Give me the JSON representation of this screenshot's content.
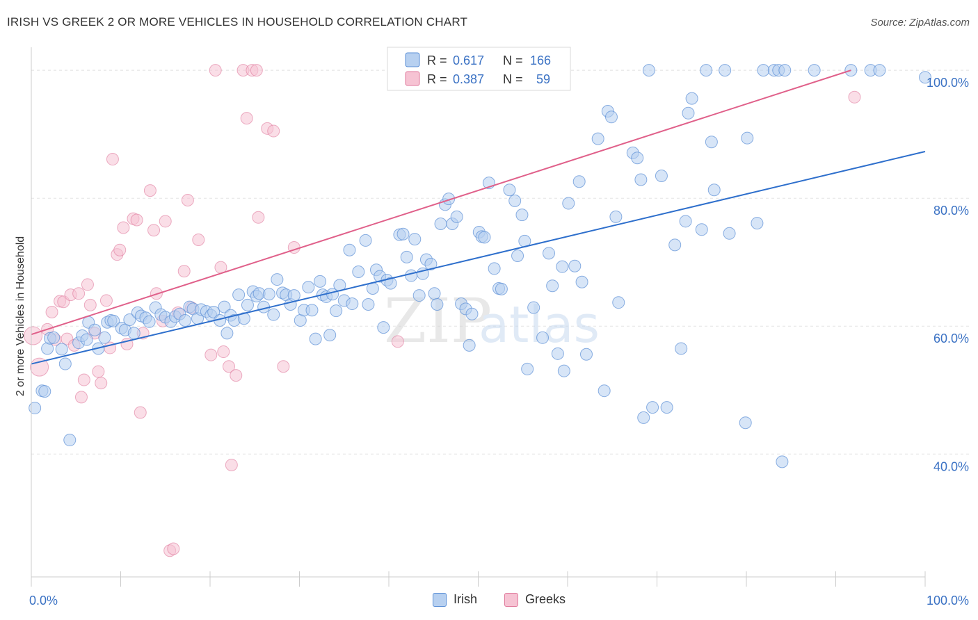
{
  "header": {
    "title": "IRISH VS GREEK 2 OR MORE VEHICLES IN HOUSEHOLD CORRELATION CHART",
    "source": "Source: ZipAtlas.com"
  },
  "colors": {
    "irish": "#5b8fd6",
    "irish_fill": "#b7d0f0",
    "irish_line": "#2e6fcc",
    "greeks": "#e07a9c",
    "greeks_fill": "#f6c3d3",
    "greeks_line": "#e0608a",
    "tick_text": "#3b72c4"
  },
  "legend": {
    "irish": {
      "r_label": "R =",
      "r_value": "0.617",
      "n_label": "N =",
      "n_value": "166"
    },
    "greeks": {
      "r_label": "R =",
      "r_value": "0.387",
      "n_label": "N =",
      "n_value": "59"
    }
  },
  "watermark": {
    "zip": "ZIP",
    "atlas": "atlas"
  },
  "chart_data": {
    "type": "scatter",
    "title": "IRISH VS GREEK 2 OR MORE VEHICLES IN HOUSEHOLD CORRELATION CHART",
    "xlabel": "",
    "ylabel": "2 or more Vehicles in Household",
    "xlim": [
      0,
      100
    ],
    "ylim": [
      20.8,
      103.6
    ],
    "x_tick_labels": [
      "0.0%",
      "100.0%"
    ],
    "y_tick_labels": [
      "40.0%",
      "60.0%",
      "80.0%",
      "100.0%"
    ],
    "y_ticks": [
      40,
      60,
      80,
      100
    ],
    "grid": true,
    "legend_position": "top-center",
    "series": [
      {
        "name": "Irish",
        "r": 0.617,
        "n": 166,
        "trend": {
          "x": [
            0,
            100
          ],
          "y": [
            54.1,
            87.3
          ]
        },
        "points": [
          [
            0.4,
            47.2
          ],
          [
            1.2,
            49.9
          ],
          [
            1.5,
            49.8
          ],
          [
            1.8,
            56.5
          ],
          [
            2.1,
            58.1
          ],
          [
            2.5,
            58.2
          ],
          [
            3.4,
            56.4
          ],
          [
            3.8,
            54.1
          ],
          [
            4.3,
            42.2
          ],
          [
            5.3,
            57.4
          ],
          [
            5.7,
            58.5
          ],
          [
            6.2,
            57.9
          ],
          [
            6.4,
            60.6
          ],
          [
            7.1,
            59.4
          ],
          [
            7.5,
            56.5
          ],
          [
            8.2,
            58.2
          ],
          [
            8.5,
            60.6
          ],
          [
            8.9,
            60.9
          ],
          [
            9.2,
            60.8
          ],
          [
            10.1,
            59.7
          ],
          [
            10.5,
            59.4
          ],
          [
            11.0,
            61.0
          ],
          [
            11.5,
            58.9
          ],
          [
            11.9,
            62.1
          ],
          [
            12.3,
            61.6
          ],
          [
            12.8,
            61.3
          ],
          [
            13.2,
            60.7
          ],
          [
            13.9,
            62.9
          ],
          [
            14.5,
            61.8
          ],
          [
            15.0,
            61.4
          ],
          [
            15.6,
            60.7
          ],
          [
            16.1,
            61.5
          ],
          [
            16.6,
            61.9
          ],
          [
            17.2,
            60.9
          ],
          [
            17.7,
            63.0
          ],
          [
            18.1,
            62.7
          ],
          [
            18.6,
            61.2
          ],
          [
            19.0,
            62.6
          ],
          [
            19.6,
            62.3
          ],
          [
            20.1,
            61.7
          ],
          [
            20.4,
            62.2
          ],
          [
            21.1,
            60.9
          ],
          [
            21.6,
            63.0
          ],
          [
            21.9,
            58.9
          ],
          [
            22.3,
            61.7
          ],
          [
            22.7,
            60.9
          ],
          [
            23.2,
            64.9
          ],
          [
            23.8,
            61.2
          ],
          [
            24.2,
            63.3
          ],
          [
            24.8,
            65.4
          ],
          [
            25.2,
            64.7
          ],
          [
            25.5,
            65.1
          ],
          [
            26.0,
            63.0
          ],
          [
            26.6,
            65.0
          ],
          [
            27.1,
            61.8
          ],
          [
            27.5,
            67.3
          ],
          [
            28.1,
            65.2
          ],
          [
            28.5,
            64.9
          ],
          [
            29.0,
            63.4
          ],
          [
            29.4,
            64.8
          ],
          [
            30.1,
            60.9
          ],
          [
            30.5,
            62.5
          ],
          [
            31.0,
            66.1
          ],
          [
            31.4,
            62.5
          ],
          [
            31.8,
            58.0
          ],
          [
            32.3,
            67.0
          ],
          [
            32.6,
            64.9
          ],
          [
            33.0,
            64.6
          ],
          [
            33.4,
            58.6
          ],
          [
            33.7,
            65.0
          ],
          [
            34.1,
            62.4
          ],
          [
            34.5,
            66.4
          ],
          [
            35.0,
            64.0
          ],
          [
            35.6,
            71.9
          ],
          [
            35.9,
            63.5
          ],
          [
            36.6,
            68.5
          ],
          [
            37.4,
            73.4
          ],
          [
            37.7,
            63.4
          ],
          [
            38.2,
            65.9
          ],
          [
            38.6,
            68.8
          ],
          [
            39.0,
            67.8
          ],
          [
            39.4,
            59.8
          ],
          [
            39.8,
            67.2
          ],
          [
            40.2,
            66.7
          ],
          [
            41.2,
            74.3
          ],
          [
            41.6,
            74.4
          ],
          [
            42.0,
            70.8
          ],
          [
            42.5,
            67.9
          ],
          [
            42.9,
            73.6
          ],
          [
            43.4,
            64.8
          ],
          [
            43.8,
            68.2
          ],
          [
            44.2,
            70.4
          ],
          [
            44.7,
            69.7
          ],
          [
            45.1,
            65.1
          ],
          [
            45.4,
            63.4
          ],
          [
            45.8,
            76.0
          ],
          [
            46.3,
            79.0
          ],
          [
            46.7,
            79.9
          ],
          [
            47.1,
            76.0
          ],
          [
            47.6,
            77.1
          ],
          [
            48.1,
            63.5
          ],
          [
            48.6,
            62.7
          ],
          [
            49.0,
            57.0
          ],
          [
            49.3,
            61.9
          ],
          [
            50.1,
            74.7
          ],
          [
            50.4,
            74.0
          ],
          [
            50.7,
            73.9
          ],
          [
            51.2,
            82.4
          ],
          [
            51.8,
            69.0
          ],
          [
            52.3,
            65.9
          ],
          [
            52.6,
            65.8
          ],
          [
            53.5,
            81.3
          ],
          [
            54.1,
            79.6
          ],
          [
            54.4,
            71.0
          ],
          [
            54.9,
            77.4
          ],
          [
            55.2,
            73.3
          ],
          [
            55.5,
            53.3
          ],
          [
            56.2,
            62.9
          ],
          [
            57.2,
            58.2
          ],
          [
            57.9,
            71.4
          ],
          [
            58.3,
            66.3
          ],
          [
            58.9,
            55.7
          ],
          [
            59.4,
            69.3
          ],
          [
            59.6,
            53.0
          ],
          [
            60.1,
            79.2
          ],
          [
            60.8,
            69.4
          ],
          [
            61.3,
            82.6
          ],
          [
            61.6,
            66.9
          ],
          [
            62.1,
            55.6
          ],
          [
            63.4,
            89.3
          ],
          [
            64.1,
            49.9
          ],
          [
            64.5,
            93.6
          ],
          [
            64.9,
            92.7
          ],
          [
            65.4,
            77.1
          ],
          [
            65.7,
            63.7
          ],
          [
            67.3,
            87.1
          ],
          [
            67.8,
            86.3
          ],
          [
            68.2,
            82.9
          ],
          [
            68.5,
            45.7
          ],
          [
            69.1,
            100.0
          ],
          [
            69.5,
            47.3
          ],
          [
            70.5,
            83.5
          ],
          [
            71.1,
            47.3
          ],
          [
            72.0,
            72.7
          ],
          [
            72.7,
            56.5
          ],
          [
            73.2,
            76.4
          ],
          [
            73.5,
            93.3
          ],
          [
            73.9,
            95.6
          ],
          [
            75.0,
            75.1
          ],
          [
            75.5,
            100.0
          ],
          [
            76.1,
            88.8
          ],
          [
            76.4,
            81.3
          ],
          [
            77.6,
            100.0
          ],
          [
            78.1,
            74.5
          ],
          [
            79.9,
            44.9
          ],
          [
            80.1,
            89.4
          ],
          [
            81.2,
            76.1
          ],
          [
            81.9,
            100.0
          ],
          [
            83.1,
            100.0
          ],
          [
            83.6,
            100.0
          ],
          [
            84.0,
            38.8
          ],
          [
            84.3,
            100.0
          ],
          [
            87.6,
            100.0
          ],
          [
            91.7,
            100.0
          ],
          [
            93.9,
            100.0
          ],
          [
            94.9,
            100.0
          ],
          [
            100.0,
            98.9
          ]
        ]
      },
      {
        "name": "Greeks",
        "r": 0.387,
        "n": 59,
        "trend": {
          "x": [
            0,
            91.7
          ],
          "y": [
            58.7,
            100.0
          ]
        },
        "points": [
          [
            0.2,
            58.5
          ],
          [
            0.9,
            53.6
          ],
          [
            1.8,
            59.5
          ],
          [
            2.3,
            62.2
          ],
          [
            2.7,
            57.9
          ],
          [
            3.2,
            63.9
          ],
          [
            3.6,
            63.8
          ],
          [
            4.0,
            58.0
          ],
          [
            4.4,
            64.9
          ],
          [
            4.8,
            57.0
          ],
          [
            5.3,
            65.1
          ],
          [
            5.6,
            48.9
          ],
          [
            5.9,
            51.6
          ],
          [
            6.3,
            66.5
          ],
          [
            6.6,
            63.3
          ],
          [
            7.1,
            58.9
          ],
          [
            7.5,
            52.9
          ],
          [
            7.8,
            51.1
          ],
          [
            8.4,
            64.0
          ],
          [
            8.8,
            56.6
          ],
          [
            9.1,
            86.1
          ],
          [
            9.6,
            71.2
          ],
          [
            9.9,
            71.9
          ],
          [
            10.3,
            75.4
          ],
          [
            10.7,
            57.2
          ],
          [
            11.4,
            76.8
          ],
          [
            11.8,
            76.6
          ],
          [
            12.2,
            46.5
          ],
          [
            12.5,
            58.9
          ],
          [
            13.3,
            81.2
          ],
          [
            13.7,
            75.0
          ],
          [
            14.0,
            65.1
          ],
          [
            14.7,
            60.8
          ],
          [
            15.0,
            76.4
          ],
          [
            15.5,
            24.9
          ],
          [
            15.9,
            25.2
          ],
          [
            16.4,
            62.1
          ],
          [
            17.1,
            68.6
          ],
          [
            17.5,
            79.7
          ],
          [
            17.9,
            62.9
          ],
          [
            18.7,
            73.5
          ],
          [
            20.1,
            55.5
          ],
          [
            20.6,
            100.0
          ],
          [
            21.2,
            69.2
          ],
          [
            21.5,
            56.0
          ],
          [
            22.1,
            53.7
          ],
          [
            22.4,
            38.3
          ],
          [
            22.9,
            52.3
          ],
          [
            23.7,
            100.0
          ],
          [
            24.1,
            92.5
          ],
          [
            24.7,
            100.0
          ],
          [
            25.2,
            100.0
          ],
          [
            25.4,
            77.0
          ],
          [
            26.4,
            90.9
          ],
          [
            27.1,
            90.5
          ],
          [
            28.2,
            53.7
          ],
          [
            29.4,
            72.3
          ],
          [
            41.0,
            57.6
          ],
          [
            92.1,
            95.8
          ]
        ]
      }
    ]
  }
}
